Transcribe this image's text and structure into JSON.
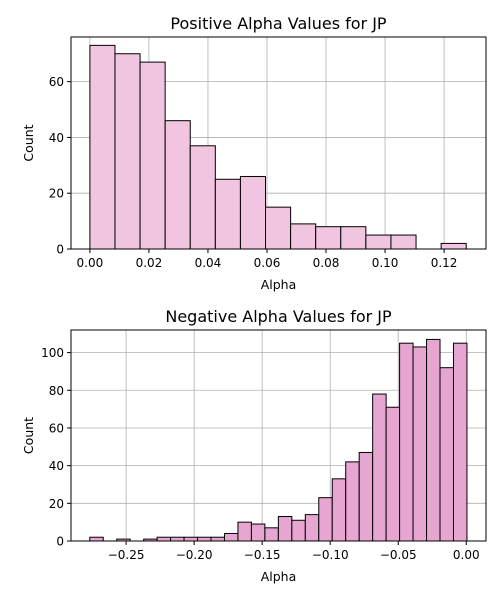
{
  "chart_data": [
    {
      "type": "bar",
      "title": "Positive Alpha Values for JP",
      "xlabel": "Alpha",
      "ylabel": "Count",
      "bar_color": "#f1c4e0",
      "edge_color": "#000000",
      "grid": true,
      "xlim": [
        -0.0064,
        0.1342
      ],
      "ylim": [
        0,
        76
      ],
      "xticks": [
        0.0,
        0.02,
        0.04,
        0.06,
        0.08,
        0.1,
        0.12
      ],
      "xtick_labels": [
        "0.00",
        "0.02",
        "0.04",
        "0.06",
        "0.08",
        "0.10",
        "0.12"
      ],
      "yticks": [
        0,
        20,
        40,
        60
      ],
      "ytick_labels": [
        "0",
        "20",
        "40",
        "60"
      ],
      "bin_edges": [
        0.0,
        0.0085,
        0.017,
        0.0255,
        0.034,
        0.0425,
        0.051,
        0.0595,
        0.068,
        0.0765,
        0.085,
        0.0935,
        0.102,
        0.1105,
        0.119,
        0.1275
      ],
      "counts": [
        73,
        70,
        67,
        46,
        37,
        25,
        26,
        15,
        9,
        8,
        8,
        5,
        5,
        0,
        2
      ]
    },
    {
      "type": "bar",
      "title": "Negative Alpha Values for JP",
      "xlabel": "Alpha",
      "ylabel": "Count",
      "bar_color": "#e7a5d1",
      "edge_color": "#000000",
      "grid": true,
      "xlim": [
        -0.2905,
        0.0145
      ],
      "ylim": [
        0,
        112
      ],
      "xticks": [
        -0.25,
        -0.2,
        -0.15,
        -0.1,
        -0.05,
        0.0
      ],
      "xtick_labels": [
        "−0.25",
        "−0.20",
        "−0.15",
        "−0.10",
        "−0.05",
        "0.00"
      ],
      "yticks": [
        0,
        20,
        40,
        60,
        80,
        100
      ],
      "ytick_labels": [
        "0",
        "20",
        "40",
        "60",
        "80",
        "100"
      ],
      "bin_edges": [
        -0.2767,
        -0.2668,
        -0.2569,
        -0.247,
        -0.2371,
        -0.2272,
        -0.2173,
        -0.2074,
        -0.1975,
        -0.1876,
        -0.1777,
        -0.1678,
        -0.1579,
        -0.148,
        -0.1381,
        -0.1282,
        -0.1183,
        -0.1084,
        -0.0985,
        -0.0886,
        -0.0787,
        -0.0688,
        -0.0589,
        -0.049,
        -0.0391,
        -0.0292,
        -0.0193,
        -0.0094,
        0.0005
      ],
      "counts": [
        2,
        0,
        1,
        0,
        1,
        2,
        2,
        2,
        2,
        2,
        4,
        10,
        9,
        7,
        13,
        11,
        14,
        23,
        33,
        42,
        47,
        78,
        71,
        105,
        103,
        107,
        92,
        105
      ]
    }
  ]
}
